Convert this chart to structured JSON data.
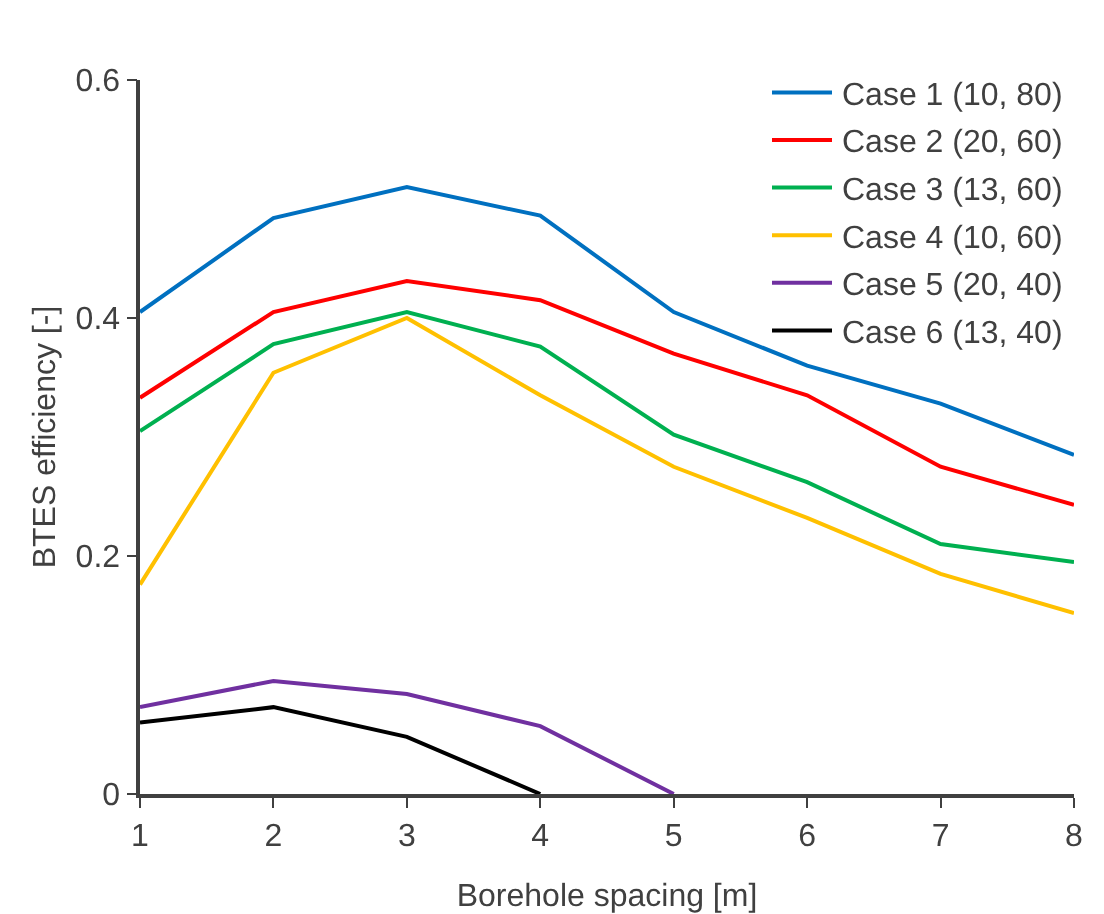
{
  "chart_data": {
    "type": "line",
    "xlabel": "Borehole spacing [m]",
    "ylabel": "BTES efficiency [-]",
    "x": [
      1,
      2,
      3,
      4,
      5,
      6,
      7,
      8
    ],
    "series": [
      {
        "name": "Case 1 (10, 80)",
        "color": "#0070c0",
        "values": [
          0.405,
          0.484,
          0.51,
          0.486,
          0.405,
          0.36,
          0.328,
          0.285
        ]
      },
      {
        "name": "Case 2 (20, 60)",
        "color": "#ff0000",
        "values": [
          0.333,
          0.405,
          0.431,
          0.415,
          0.37,
          0.335,
          0.275,
          0.243
        ]
      },
      {
        "name": "Case 3 (13, 60)",
        "color": "#00b050",
        "values": [
          0.305,
          0.378,
          0.405,
          0.376,
          0.302,
          0.262,
          0.21,
          0.195
        ]
      },
      {
        "name": "Case 4 (10, 60)",
        "color": "#ffc000",
        "values": [
          0.176,
          0.354,
          0.4,
          0.335,
          0.275,
          0.232,
          0.185,
          0.152
        ]
      },
      {
        "name": "Case 5 (20, 40)",
        "color": "#7030a0",
        "values": [
          0.073,
          0.095,
          0.084,
          0.057,
          0,
          null,
          null,
          null
        ]
      },
      {
        "name": "Case 6 (13, 40)",
        "color": "#000000",
        "values": [
          0.06,
          0.073,
          0.048,
          0,
          null,
          null,
          null,
          null
        ]
      }
    ],
    "xlim": [
      1,
      8
    ],
    "xticks": [
      1,
      2,
      3,
      4,
      5,
      6,
      7,
      8
    ],
    "ylim": [
      0,
      0.6
    ],
    "yticks": [
      0,
      0.2,
      0.4,
      0.6
    ],
    "grid": false,
    "legend": "top right",
    "marker": "none",
    "line_style": "solid"
  }
}
